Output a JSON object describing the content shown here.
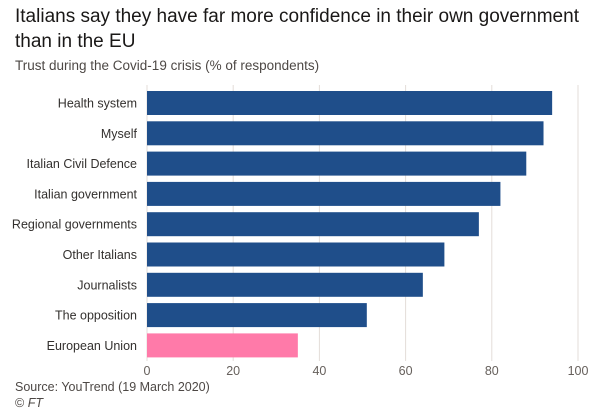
{
  "header": {
    "title": "Italians say they have far more confidence in their own government than in the EU",
    "subtitle": "Trust during the Covid-19 crisis (% of respondents)"
  },
  "footer": {
    "source": "Source: YouTrend (19 March 2020)",
    "credit_symbol": "©",
    "credit": " FT"
  },
  "colors": {
    "bar": "#1f4e8a",
    "highlight": "#ff7aa9",
    "gridline": "#e3ddd8",
    "tick_text": "#66605c",
    "label_text": "#33302e"
  },
  "chart_data": {
    "type": "bar",
    "orientation": "horizontal",
    "categories": [
      "Health system",
      "Myself",
      "Italian Civil Defence",
      "Italian government",
      "Regional governments",
      "Other Italians",
      "Journalists",
      "The opposition",
      "European Union"
    ],
    "values": [
      94,
      92,
      88,
      82,
      77,
      69,
      64,
      51,
      35
    ],
    "highlighted": [
      "European Union"
    ],
    "title": "Italians say they have far more confidence in their own government than in the EU",
    "subtitle": "Trust during the Covid-19 crisis (% of respondents)",
    "xlabel": "",
    "ylabel": "",
    "xlim": [
      0,
      100
    ],
    "xticks": [
      0,
      20,
      40,
      60,
      80,
      100
    ],
    "grid": "vertical"
  }
}
